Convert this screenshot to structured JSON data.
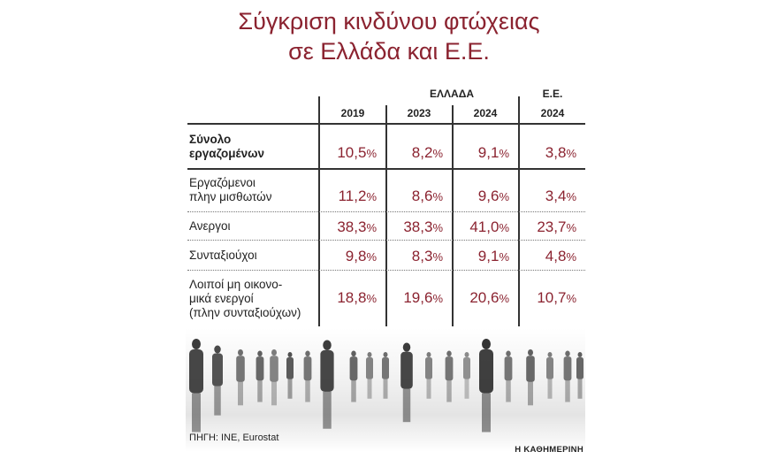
{
  "title_line1": "Σύγκριση κινδύνου φτώχειας",
  "title_line2": "σε Ελλάδα και Ε.Ε.",
  "source": "ΠΗΓΗ: INE, Eurostat",
  "brand": "Η ΚΑΘΗΜΕΡΙΝΗ",
  "colors": {
    "accent": "#8b2330",
    "text": "#222222"
  },
  "chart_data": {
    "type": "table",
    "group_headers": [
      "ΕΛΛΑΔΑ",
      "Ε.Ε."
    ],
    "columns": [
      "2019",
      "2023",
      "2024",
      "2024"
    ],
    "column_groups": [
      "ΕΛΛΑΔΑ",
      "ΕΛΛΑΔΑ",
      "ΕΛΛΑΔΑ",
      "Ε.Ε."
    ],
    "unit": "%",
    "rows": [
      {
        "label_lines": [
          "Σύνολο",
          "εργαζομένων"
        ],
        "values": [
          10.5,
          8.2,
          9.1,
          3.8
        ],
        "display": [
          "10,5",
          "8,2",
          "9,1",
          "3,8"
        ]
      },
      {
        "label_lines": [
          "Εργαζόμενοι",
          "πλην μισθωτών"
        ],
        "values": [
          11.2,
          8.6,
          9.6,
          3.4
        ],
        "display": [
          "11,2",
          "8,6",
          "9,6",
          "3,4"
        ]
      },
      {
        "label_lines": [
          "Ανεργοι"
        ],
        "values": [
          38.3,
          38.3,
          41.0,
          23.7
        ],
        "display": [
          "38,3",
          "38,3",
          "41,0",
          "23,7"
        ]
      },
      {
        "label_lines": [
          "Συνταξιούχοι"
        ],
        "values": [
          9.8,
          8.3,
          9.1,
          4.8
        ],
        "display": [
          "9,8",
          "8,3",
          "9,1",
          "4,8"
        ]
      },
      {
        "label_lines": [
          "Λοιποί μη οικονο-",
          "μικά ενεργοί",
          "(πλην συνταξιούχων)"
        ],
        "values": [
          18.8,
          19.6,
          20.6,
          10.7
        ],
        "display": [
          "18,8",
          "19,6",
          "20,6",
          "10,7"
        ]
      }
    ]
  }
}
